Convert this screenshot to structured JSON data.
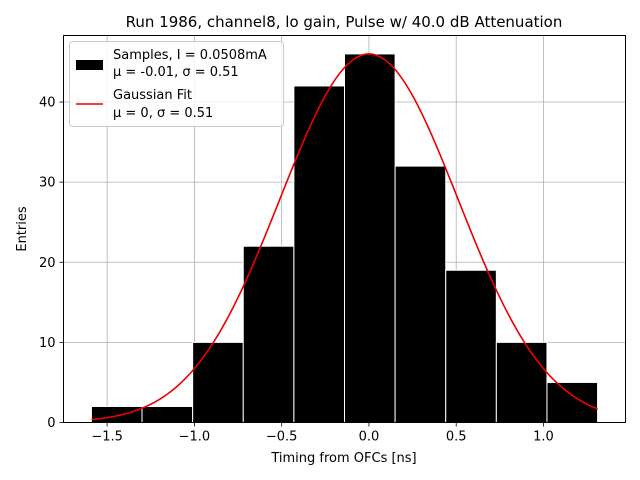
{
  "chart_data": {
    "type": "bar",
    "title": "Run 1986, channel8, lo gain, Pulse w/ 40.0 dB Attenuation",
    "xlabel": "Timing from OFCs [ns]",
    "ylabel": "Entries",
    "xlim": [
      -1.75,
      1.47
    ],
    "ylim": [
      0,
      48.3
    ],
    "xticks": [
      -1.5,
      -1.0,
      -0.5,
      0.0,
      0.5,
      1.0
    ],
    "xtick_labels": [
      "−1.5",
      "−1.0",
      "−0.5",
      "0.0",
      "0.5",
      "1.0"
    ],
    "yticks": [
      0,
      10,
      20,
      30,
      40
    ],
    "ytick_labels": [
      "0",
      "10",
      "20",
      "30",
      "40"
    ],
    "grid": true,
    "histogram": {
      "name": "Samples, I = 0.0508mA",
      "stats": "μ = -0.01, σ = 0.51",
      "color": "#000000",
      "bin_edges": [
        -1.59,
        -1.3,
        -1.01,
        -0.72,
        -0.43,
        -0.14,
        0.15,
        0.44,
        0.73,
        1.02,
        1.31
      ],
      "counts": [
        2,
        2,
        10,
        22,
        42,
        46,
        32,
        19,
        10,
        5
      ]
    },
    "fit": {
      "name": "Gaussian Fit",
      "stats": "μ = 0, σ = 0.51",
      "color": "#ee0000",
      "mu": 0.0,
      "sigma": 0.51,
      "amplitude": 46,
      "x_range": [
        -1.59,
        1.31
      ]
    },
    "legend_position": "upper-left"
  }
}
